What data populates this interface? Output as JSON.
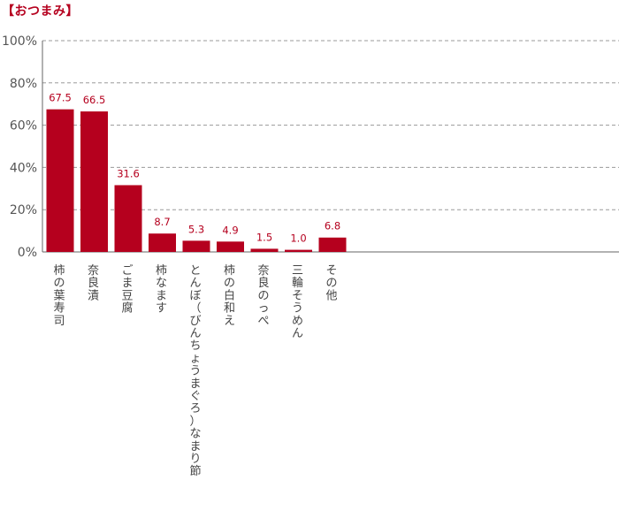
{
  "chart_data": {
    "type": "bar",
    "title": "【おつまみ】",
    "categories": [
      "柿の葉寿司",
      "奈良漬",
      "ごま豆腐",
      "柿なます",
      "とんぼ（びんちょうまぐろ）なまり節",
      "柿の白和え",
      "奈良のっぺ",
      "三輪そうめん",
      "その他"
    ],
    "values": [
      67.5,
      66.5,
      31.6,
      8.7,
      5.3,
      4.9,
      1.5,
      1.0,
      6.8
    ],
    "value_labels": [
      "67.5",
      "66.5",
      "31.6",
      "8.7",
      "5.3",
      "4.9",
      "1.5",
      "1.0",
      "6.8"
    ],
    "y_ticks": [
      0,
      20,
      40,
      60,
      80,
      100
    ],
    "y_tick_labels": [
      "0%",
      "20%",
      "40%",
      "60%",
      "80%",
      "100%"
    ],
    "ylim": [
      0,
      100
    ],
    "xlabel": "",
    "ylabel": "",
    "grid": true,
    "grid_style": "dashed",
    "bar_color": "#b5001e",
    "label_color": "#b5001e"
  }
}
